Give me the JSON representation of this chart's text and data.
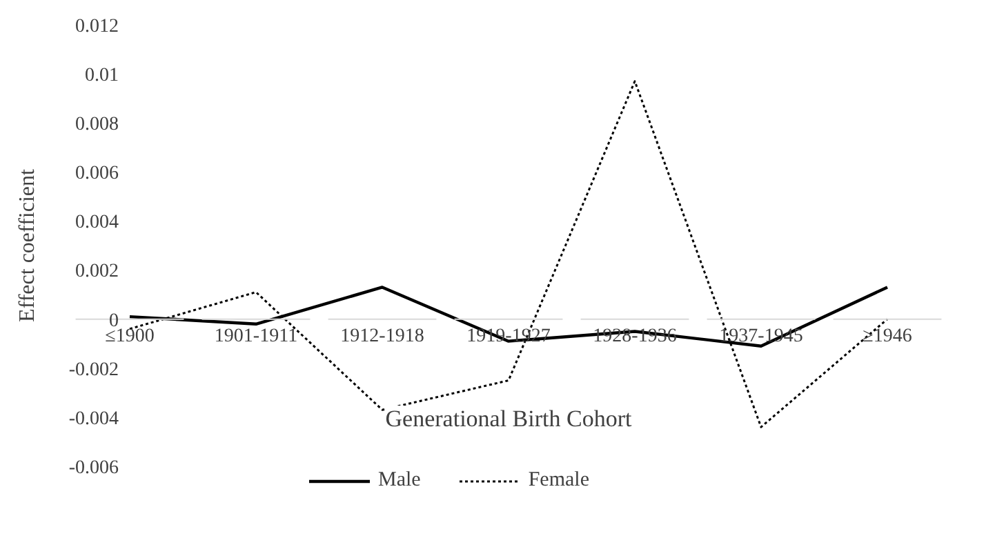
{
  "chart_data": {
    "type": "line",
    "xlabel": "Generational Birth Cohort",
    "ylabel": "Effect coefficient",
    "categories": [
      "≤1900",
      "1901-1911",
      "1912-1918",
      "1919-1927",
      "1928-1936",
      "1937-1945",
      "≥1946"
    ],
    "series": [
      {
        "name": "Male",
        "color": "#000000",
        "line_style": "solid",
        "values": [
          0.0001,
          -0.0002,
          0.0013,
          -0.0009,
          -0.0005,
          -0.0011,
          0.0013
        ]
      },
      {
        "name": "Female",
        "color": "#000000",
        "line_style": "dotted",
        "values": [
          -0.0004,
          0.0011,
          -0.0037,
          -0.0025,
          0.0097,
          -0.0044,
          0
        ]
      }
    ],
    "ylim": [
      -0.006,
      0.012
    ],
    "yticks": [
      -0.006,
      -0.004,
      -0.002,
      0,
      0.002,
      0.004,
      0.006,
      0.008,
      0.01,
      0.012
    ],
    "grid": false,
    "legend": "bottom",
    "marker": "none"
  }
}
